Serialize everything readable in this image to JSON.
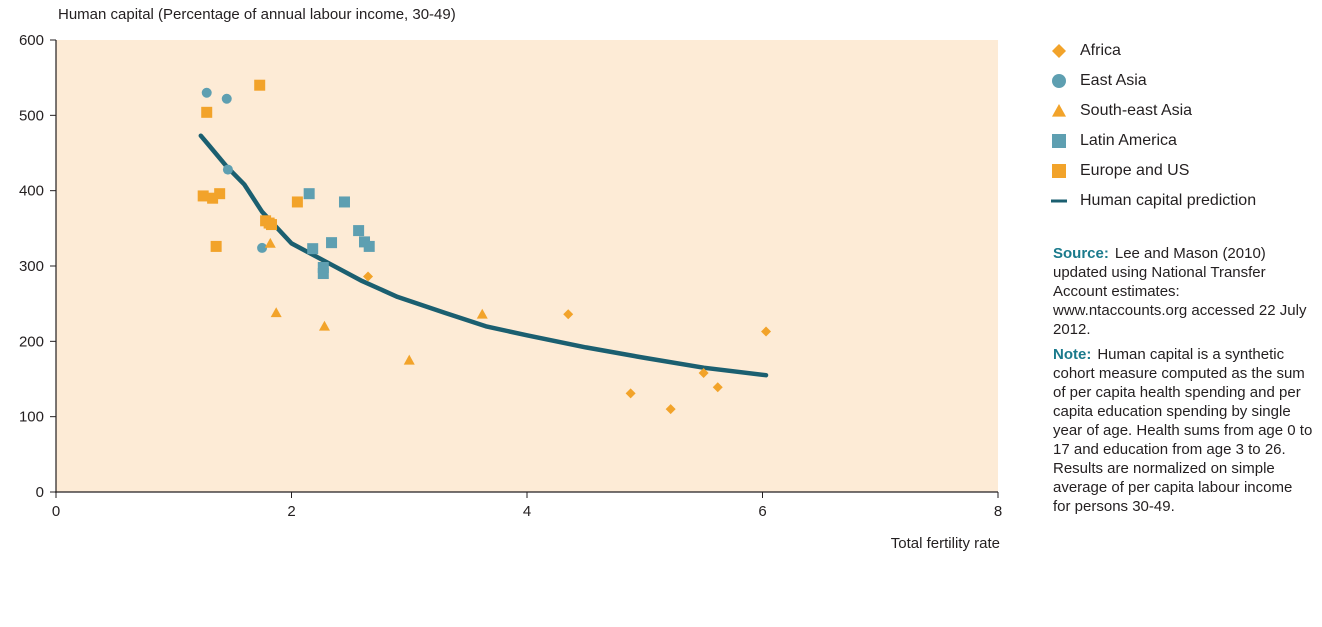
{
  "chart_data": {
    "type": "scatter",
    "title": "",
    "ylabel": "Human capital (Percentage of annual labour income, 30-49)",
    "xlabel": "Total fertility rate",
    "xlim": [
      0,
      8
    ],
    "ylim": [
      0,
      600
    ],
    "x_ticks": [
      "0",
      "2",
      "4",
      "6",
      "8"
    ],
    "y_ticks": [
      "0",
      "100",
      "200",
      "300",
      "400",
      "500",
      "600"
    ],
    "grid": false,
    "legend_position": "right",
    "series": [
      {
        "name": "Africa",
        "marker": "diamond",
        "color": "#f2a32a",
        "points": [
          [
            2.65,
            286
          ],
          [
            4.35,
            236
          ],
          [
            4.88,
            131
          ],
          [
            5.22,
            110
          ],
          [
            5.5,
            158
          ],
          [
            5.62,
            139
          ],
          [
            6.03,
            213
          ]
        ]
      },
      {
        "name": "East Asia",
        "marker": "circle",
        "color": "#5e9fb1",
        "points": [
          [
            1.28,
            530
          ],
          [
            1.45,
            522
          ],
          [
            1.46,
            428
          ],
          [
            1.75,
            324
          ]
        ]
      },
      {
        "name": "South-east Asia",
        "marker": "triangle",
        "color": "#f2a32a",
        "points": [
          [
            1.82,
            330
          ],
          [
            1.87,
            238
          ],
          [
            2.28,
            220
          ],
          [
            3.0,
            175
          ],
          [
            3.62,
            236
          ]
        ]
      },
      {
        "name": "Latin America",
        "marker": "square",
        "color": "#5e9fb1",
        "points": [
          [
            2.15,
            396
          ],
          [
            2.18,
            323
          ],
          [
            2.27,
            298
          ],
          [
            2.27,
            290
          ],
          [
            2.34,
            331
          ],
          [
            2.45,
            385
          ],
          [
            2.57,
            347
          ],
          [
            2.62,
            332
          ],
          [
            2.66,
            326
          ]
        ]
      },
      {
        "name": "Europe and US",
        "marker": "square",
        "color": "#f2a32a",
        "points": [
          [
            1.25,
            393
          ],
          [
            1.28,
            504
          ],
          [
            1.33,
            390
          ],
          [
            1.36,
            326
          ],
          [
            1.39,
            396
          ],
          [
            1.73,
            540
          ],
          [
            1.78,
            360
          ],
          [
            1.81,
            357
          ],
          [
            1.83,
            355
          ],
          [
            2.05,
            385
          ]
        ]
      },
      {
        "name": "Human capital prediction",
        "type": "line",
        "color": "#1b5f70",
        "points": [
          [
            1.23,
            473
          ],
          [
            1.3,
            460
          ],
          [
            1.45,
            432
          ],
          [
            1.6,
            408
          ],
          [
            1.75,
            372
          ],
          [
            2.0,
            330
          ],
          [
            2.3,
            305
          ],
          [
            2.6,
            280
          ],
          [
            2.9,
            259
          ],
          [
            3.3,
            238
          ],
          [
            3.65,
            220
          ],
          [
            4.0,
            208
          ],
          [
            4.5,
            192
          ],
          [
            5.0,
            178
          ],
          [
            5.5,
            165
          ],
          [
            6.03,
            155
          ]
        ]
      }
    ]
  },
  "notes": {
    "source_label": "Source:",
    "source_text": "Lee and Mason (2010) updated using National Transfer Account estimates: www.ntaccounts.org accessed 22 July 2012.",
    "note_label": "Note:",
    "note_text": "Human capital is a synthetic cohort measure computed as the sum of per capita health spending and per capita education spending by single year of age. Health sums from age 0 to 17 and education from age 3 to 26. Results are normalized on simple average of per capita labour income for persons 30-49."
  },
  "colors": {
    "plot_background": "#fdebd6",
    "axis": "#231f20"
  }
}
